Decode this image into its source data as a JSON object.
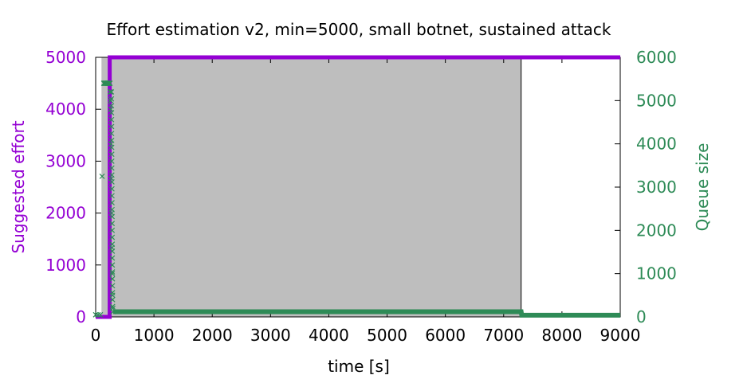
{
  "chart_data": {
    "type": "line",
    "title": "Effort estimation v2, min=5000, small botnet, sustained attack",
    "xlabel": "time [s]",
    "ylabel": "Suggested effort",
    "y2label": "Queue size",
    "xlim": [
      0,
      9000
    ],
    "ylim": [
      0,
      5000
    ],
    "y2lim": [
      0,
      6000
    ],
    "xticks": [
      0,
      1000,
      2000,
      3000,
      4000,
      5000,
      6000,
      7000,
      8000,
      9000
    ],
    "yticks": [
      0,
      1000,
      2000,
      3000,
      4000,
      5000
    ],
    "y2ticks": [
      0,
      1000,
      2000,
      3000,
      4000,
      5000,
      6000
    ],
    "grid": false,
    "colors": {
      "effort": "#9400d3",
      "queue": "#2e8b57",
      "attack_shade": "#bebebe"
    },
    "attack_window": [
      100,
      7300
    ],
    "series": [
      {
        "role": "effort",
        "axis": "left",
        "style": "line",
        "x": [
          0,
          240,
          241,
          300,
          1000,
          2000,
          3000,
          4000,
          5000,
          6000,
          7000,
          8000,
          9000
        ],
        "y": [
          0,
          0,
          5000,
          5000,
          5000,
          5000,
          5000,
          5000,
          5000,
          5000,
          5000,
          5000,
          5000
        ]
      },
      {
        "role": "queue",
        "axis": "right",
        "style": "markers",
        "x": [
          0,
          40,
          80,
          110,
          140,
          160,
          180,
          200,
          215,
          230,
          245,
          250,
          255,
          260,
          265,
          270,
          275,
          280,
          285,
          290,
          295,
          300
        ],
        "y": [
          50,
          50,
          50,
          3250,
          5400,
          5400,
          5400,
          5400,
          5400,
          5400,
          5400,
          5200,
          5000,
          4800,
          4000,
          3200,
          2400,
          1600,
          1000,
          500,
          200,
          120
        ]
      },
      {
        "role": "queue_plateau",
        "axis": "right",
        "style": "thick-line",
        "x": [
          300,
          7300,
          7310,
          9000
        ],
        "y": [
          120,
          120,
          40,
          40
        ]
      }
    ]
  }
}
